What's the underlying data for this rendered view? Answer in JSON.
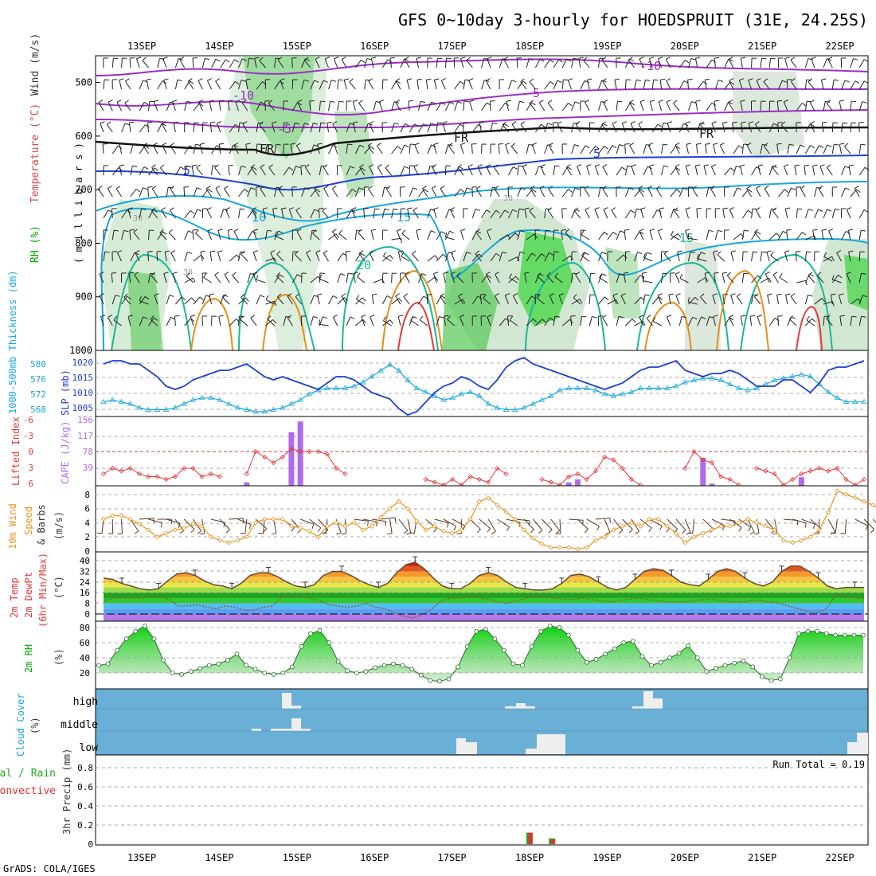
{
  "title": "GFS 0~10day 3-hourly for HOEDSPRUIT (31E, 24.25S)",
  "footer": "GrADS: COLA/IGES",
  "dates": [
    "13SEP",
    "14SEP",
    "15SEP",
    "16SEP",
    "17SEP",
    "18SEP",
    "19SEP",
    "20SEP",
    "21SEP",
    "22SEP"
  ],
  "colors": {
    "purple": "#9a2fc6",
    "blue": "#1f3fd0",
    "cyan": "#19a7d9",
    "teal": "#17b898",
    "orange": "#e0901a",
    "red": "#e03a3a",
    "rh_green": "#4cd04c",
    "cape": "#b06bea",
    "cloud_bg": "#6fb0d8",
    "precip_green": "#22a822",
    "precip_red": "#e23030",
    "wind_orange": "#e6951e",
    "barb": "#5a3a22"
  },
  "chart_data": [
    {
      "panel": "upper-air",
      "type": "heatmap",
      "ylabel_parts": [
        "Wind (m/s)",
        "Temperature (°C)",
        "RH (%)"
      ],
      "yunits": "( m i l l i b a r s )",
      "yticks": [
        500,
        600,
        700,
        800,
        900,
        1000
      ],
      "ylim": [
        1000,
        450
      ],
      "contour_labels": [
        "-10",
        "-10",
        "-5",
        "-5",
        "-5",
        "FR",
        "FR",
        "FR",
        "5",
        "5",
        "10",
        "15",
        "15",
        "20",
        "30",
        "30",
        "30"
      ]
    },
    {
      "panel": "thickness-slp",
      "type": "line",
      "ylabel_left": "1000-500mb Thickness (dm)",
      "ylabel_right": "SLP (mb)",
      "ticks_left": [
        "580",
        "576",
        "572",
        "568"
      ],
      "ticks_right": [
        "1020",
        "1015",
        "1010",
        "1005"
      ],
      "series": [
        {
          "name": "SLP (mb)",
          "values": [
            1020,
            1021,
            1021,
            1020,
            1020,
            1018,
            1016,
            1013,
            1012,
            1013,
            1015,
            1016,
            1017,
            1018,
            1018,
            1019,
            1020,
            1018,
            1016,
            1015,
            1016,
            1015,
            1014,
            1013,
            1012,
            1014,
            1016,
            1016,
            1015,
            1013,
            1011,
            1010,
            1009,
            1006,
            1004,
            1005,
            1008,
            1011,
            1013,
            1014,
            1016,
            1015,
            1013,
            1012,
            1015,
            1019,
            1021,
            1022,
            1020,
            1019,
            1018,
            1017,
            1016,
            1015,
            1014,
            1013,
            1012,
            1013,
            1014,
            1016,
            1018,
            1019,
            1019,
            1020,
            1021,
            1018,
            1017,
            1016,
            1017,
            1017,
            1018,
            1017,
            1015,
            1013,
            1013,
            1013,
            1015,
            1015,
            1013,
            1011,
            1014,
            1018,
            1019,
            1019,
            1020,
            1021
          ]
        },
        {
          "name": "1000-500mb Thickness (dm)",
          "values": [
            570.5,
            571,
            570.5,
            570,
            569,
            568.5,
            568.5,
            568.5,
            569,
            570,
            571,
            571.5,
            571.5,
            571,
            570,
            569,
            568.5,
            568,
            568,
            568.5,
            569,
            570,
            571,
            572.5,
            573.5,
            574,
            574,
            574,
            574.5,
            575.5,
            577,
            578.5,
            580,
            578.5,
            576,
            574,
            573,
            572,
            571,
            571.5,
            572.5,
            573,
            572,
            570,
            569,
            568.5,
            568.5,
            569,
            570,
            571,
            572,
            573.5,
            574,
            574,
            574,
            573.5,
            572.5,
            572,
            572.5,
            573,
            574,
            574,
            574,
            574,
            574.5,
            575.5,
            576,
            576.5,
            576.5,
            576,
            575,
            574,
            573.5,
            574,
            575,
            576,
            576.5,
            577,
            577.5,
            577,
            575,
            573,
            571.5,
            570.5,
            570.5,
            570.5
          ]
        }
      ]
    },
    {
      "panel": "li-cape",
      "type": "bar",
      "ylabel_left": "Lifted Index",
      "ylabel_right": "CAPE (J/kg)",
      "ticks_left": [
        "-6",
        "-3",
        "0",
        "3",
        "6"
      ],
      "ticks_right": [
        "156",
        "117",
        "78",
        "39"
      ],
      "series": [
        {
          "name": "Lifted Index",
          "values": [
            4,
            3,
            3.5,
            3,
            4,
            4.5,
            4.5,
            5,
            4.5,
            3,
            3,
            4.5,
            4,
            4.5,
            null,
            null,
            4,
            0,
            1,
            2,
            1,
            -0.5,
            0,
            0,
            0,
            0.5,
            3,
            4,
            null,
            null,
            null,
            null,
            null,
            null,
            null,
            null,
            5,
            5.5,
            6,
            5,
            6,
            4.5,
            5,
            5.5,
            3,
            4,
            null,
            null,
            null,
            5,
            5.5,
            6,
            4.5,
            4,
            5,
            3.5,
            1,
            1.5,
            3,
            5,
            6,
            null,
            null,
            null,
            null,
            3,
            0,
            1.5,
            2,
            4.5,
            5,
            6,
            null,
            3,
            3.5,
            4,
            6,
            5,
            4,
            3.5,
            3,
            3.5,
            3,
            5,
            6,
            5
          ]
        },
        {
          "name": "CAPE (J/kg)",
          "values": [
            0,
            0,
            0,
            0,
            0,
            0,
            0,
            0,
            0,
            0,
            0,
            0,
            0,
            0,
            0,
            0,
            8,
            0,
            0,
            0,
            0,
            125,
            150,
            0,
            0,
            0,
            0,
            0,
            0,
            0,
            0,
            0,
            0,
            0,
            0,
            0,
            0,
            0,
            0,
            0,
            0,
            0,
            0,
            0,
            0,
            0,
            0,
            0,
            0,
            0,
            0,
            0,
            8,
            15,
            0,
            0,
            0,
            0,
            0,
            0,
            0,
            0,
            0,
            0,
            0,
            0,
            0,
            65,
            5,
            0,
            0,
            0,
            0,
            0,
            0,
            0,
            0,
            0,
            20,
            0,
            0,
            0,
            0,
            0,
            0,
            0
          ]
        }
      ]
    },
    {
      "panel": "wind-10m",
      "type": "line",
      "ylabel_parts": [
        "10m Wind",
        "Speed",
        "& Barbs",
        "(m/s)"
      ],
      "yticks": [
        "0",
        "2",
        "4",
        "6",
        "8"
      ],
      "series": [
        {
          "name": "Speed",
          "values": [
            4.5,
            5,
            5,
            4.5,
            3.8,
            3,
            2,
            2.5,
            3,
            3.2,
            3.8,
            3.5,
            2,
            1.5,
            1.2,
            1.5,
            2,
            4,
            4.5,
            4.5,
            4.5,
            3.5,
            3.3,
            2.8,
            2,
            3.5,
            4,
            3.5,
            4,
            3,
            3.5,
            4.8,
            6,
            7,
            6,
            4.2,
            3,
            3.5,
            2.8,
            2.5,
            3,
            4.5,
            7,
            7.5,
            6.5,
            5.5,
            4.5,
            3,
            1.8,
            1,
            0.5,
            0.5,
            0.5,
            0.3,
            0.5,
            1.5,
            2,
            3,
            3.5,
            4,
            3.5,
            4.5,
            4.5,
            3.5,
            2.5,
            1.2,
            2,
            2.5,
            3,
            3.5,
            3.5,
            4,
            4.5,
            4,
            3.5,
            3,
            1.5,
            1.2,
            1.5,
            2,
            3,
            5.5,
            8.5,
            8,
            7.5,
            7,
            6.5,
            5.8,
            4.5
          ]
        }
      ]
    },
    {
      "panel": "temperature-2m",
      "type": "area",
      "ylabel_parts": [
        "2m Temp",
        "2m DewPt",
        "(6hr Min/Max)",
        "(°C)"
      ],
      "yticks": [
        "0",
        "8",
        "16",
        "24",
        "32",
        "40"
      ],
      "series": [
        {
          "name": "2m Temp",
          "values": [
            27,
            26,
            23,
            21,
            19,
            18,
            19,
            25,
            30,
            31,
            29,
            25,
            22,
            21,
            19,
            23,
            29,
            31,
            31,
            28,
            24,
            21,
            20,
            22,
            29,
            32,
            32,
            29,
            25,
            22,
            20,
            23,
            31,
            37,
            39,
            34,
            27,
            21,
            19,
            19,
            23,
            29,
            31,
            29,
            24,
            20,
            19,
            18,
            18,
            19,
            23,
            29,
            30,
            28,
            24,
            20,
            18,
            20,
            26,
            32,
            34,
            33,
            29,
            24,
            22,
            21,
            26,
            32,
            34,
            32,
            27,
            23,
            21,
            24,
            32,
            36,
            36,
            32,
            27,
            21,
            19,
            20,
            20,
            20
          ]
        },
        {
          "name": "2m DewPt",
          "values": [
            10,
            12,
            12,
            12,
            12,
            13,
            13,
            11,
            6,
            6,
            7,
            5,
            4,
            6,
            5,
            3,
            3,
            5,
            6,
            13,
            14,
            13,
            12,
            10,
            7,
            6,
            5,
            6,
            8,
            5,
            4,
            1,
            -2,
            -3,
            0,
            4,
            10,
            12,
            12,
            13,
            12,
            11,
            9,
            8,
            10,
            12,
            13,
            13,
            12,
            11,
            11,
            12,
            11,
            10,
            9,
            10,
            11,
            12,
            11,
            10,
            9,
            9,
            9,
            10,
            11,
            11,
            10,
            9,
            9,
            10,
            10,
            9,
            8,
            6,
            4,
            2,
            1,
            4,
            14,
            14,
            12,
            12
          ]
        }
      ]
    },
    {
      "panel": "rh-2m",
      "type": "area",
      "ylabel": "2m RH",
      "yunits": "(%)",
      "yticks": [
        "20",
        "40",
        "60",
        "80"
      ],
      "series": [
        {
          "name": "2m RH",
          "values": [
            30,
            32,
            50,
            65,
            75,
            82,
            65,
            37,
            20,
            18,
            22,
            26,
            30,
            32,
            37,
            45,
            30,
            25,
            20,
            18,
            20,
            28,
            55,
            72,
            76,
            60,
            35,
            23,
            20,
            22,
            27,
            30,
            32,
            30,
            25,
            17,
            10,
            9,
            12,
            28,
            55,
            75,
            78,
            65,
            50,
            32,
            30,
            55,
            75,
            82,
            80,
            70,
            50,
            34,
            38,
            45,
            52,
            60,
            62,
            42,
            30,
            34,
            40,
            46,
            56,
            40,
            22,
            26,
            30,
            33,
            36,
            28,
            15,
            10,
            12,
            40,
            72,
            75,
            75,
            72,
            70,
            70,
            70,
            70
          ]
        }
      ]
    },
    {
      "panel": "cloud-cover",
      "type": "bar",
      "ylabel": "Cloud Cover",
      "yunits": "(%)",
      "row_labels": [
        "high",
        "middle",
        "low"
      ]
    },
    {
      "panel": "precip-3hr",
      "type": "bar",
      "ylabel": "3hr Precip (mm)",
      "legend": [
        "Total / Rain",
        "Convective"
      ],
      "run_total": "Run Total = 0.19",
      "yticks": [
        "0",
        "0.2",
        "0.4",
        "0.6",
        "0.8"
      ],
      "series": [
        {
          "name": "Total / Rain",
          "values": [
            {
              "date_index": 5.06,
              "value": 0.12
            },
            {
              "date_index": 5.35,
              "value": 0.06
            }
          ]
        },
        {
          "name": "Convective",
          "values": [
            {
              "date_index": 5.06,
              "value": 0.12
            },
            {
              "date_index": 5.35,
              "value": 0.05
            }
          ]
        }
      ]
    }
  ]
}
